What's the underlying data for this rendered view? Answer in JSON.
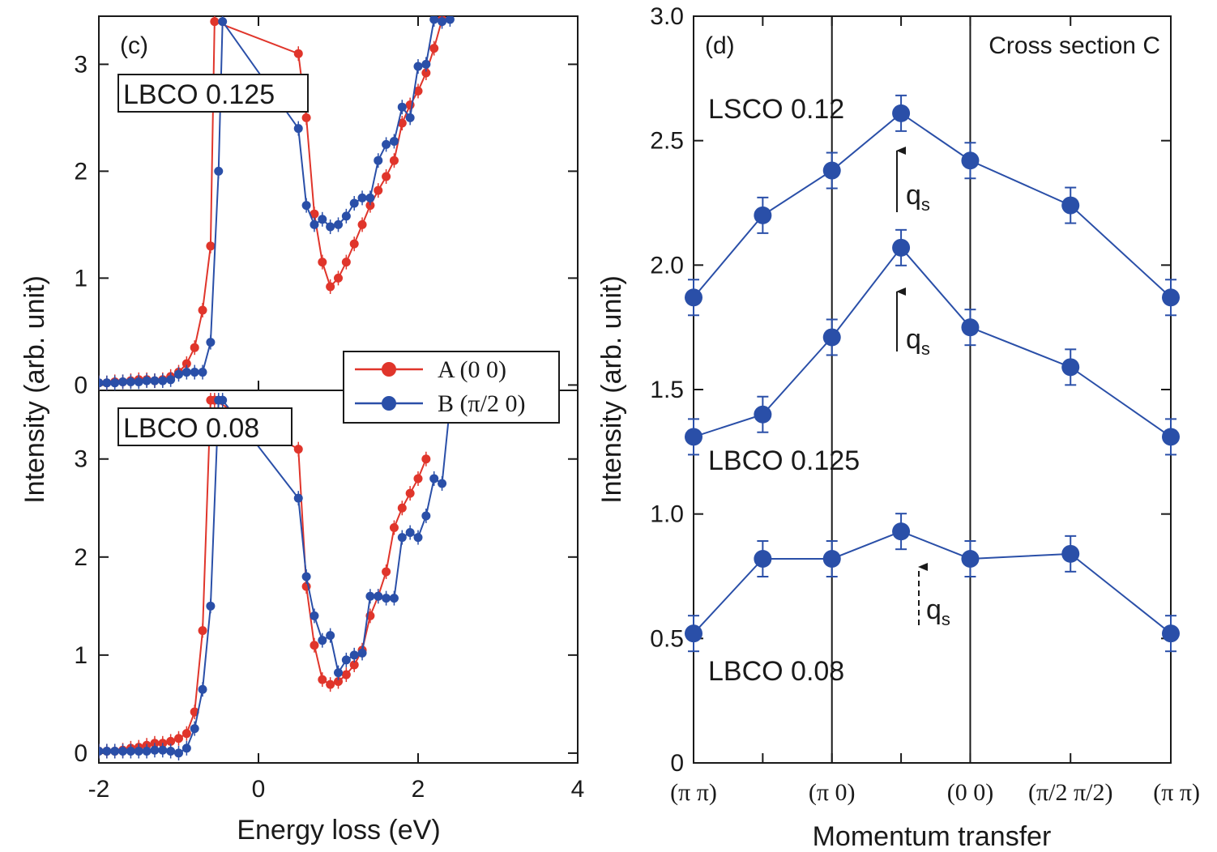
{
  "chart_data": [
    {
      "type": "line",
      "panel_label": "(c)",
      "subplots": [
        {
          "sample_label": "LBCO 0.125",
          "ylim": [
            -0.05,
            3.45
          ],
          "yticks": [
            "0",
            "1",
            "2",
            "3"
          ],
          "series": [
            {
              "name": "A (0 0)",
              "color": "#e0352b",
              "x": [
                -2.0,
                -1.9,
                -1.8,
                -1.7,
                -1.6,
                -1.5,
                -1.4,
                -1.3,
                -1.2,
                -1.1,
                -1.0,
                -0.9,
                -0.8,
                -0.7,
                -0.6,
                -0.55,
                0.5,
                0.6,
                0.7,
                0.8,
                0.9,
                1.0,
                1.1,
                1.2,
                1.3,
                1.4,
                1.5,
                1.6,
                1.7,
                1.8,
                1.9,
                2.0,
                2.1,
                2.2,
                2.3
              ],
              "y": [
                0.02,
                0.02,
                0.03,
                0.03,
                0.04,
                0.05,
                0.05,
                0.04,
                0.05,
                0.08,
                0.12,
                0.2,
                0.35,
                0.7,
                1.3,
                3.4,
                3.1,
                2.5,
                1.6,
                1.15,
                0.92,
                1.0,
                1.15,
                1.32,
                1.5,
                1.68,
                1.82,
                1.95,
                2.1,
                2.45,
                2.62,
                2.75,
                2.92,
                3.15,
                3.42
              ]
            },
            {
              "name": "B (π/2 0)",
              "color": "#2a4fa8",
              "x": [
                -2.0,
                -1.9,
                -1.8,
                -1.7,
                -1.6,
                -1.5,
                -1.4,
                -1.3,
                -1.2,
                -1.1,
                -1.0,
                -0.9,
                -0.8,
                -0.7,
                -0.6,
                -0.5,
                -0.45,
                0.5,
                0.6,
                0.7,
                0.8,
                0.9,
                1.0,
                1.1,
                1.2,
                1.3,
                1.4,
                1.5,
                1.6,
                1.7,
                1.8,
                1.9,
                2.0,
                2.1,
                2.2,
                2.3,
                2.4
              ],
              "y": [
                0.02,
                0.02,
                0.02,
                0.03,
                0.03,
                0.03,
                0.04,
                0.04,
                0.04,
                0.05,
                0.1,
                0.12,
                0.12,
                0.12,
                0.4,
                2.0,
                3.4,
                2.4,
                1.68,
                1.5,
                1.55,
                1.48,
                1.5,
                1.58,
                1.7,
                1.75,
                1.75,
                2.1,
                2.25,
                2.28,
                2.6,
                2.5,
                2.98,
                3.0,
                3.42,
                3.4,
                3.42
              ]
            }
          ]
        },
        {
          "sample_label": "LBCO 0.08",
          "ylim": [
            -0.1,
            3.7
          ],
          "yticks": [
            "0",
            "1",
            "2",
            "3"
          ],
          "series": [
            {
              "name": "A (0 0)",
              "color": "#e0352b",
              "x": [
                -2.0,
                -1.9,
                -1.8,
                -1.7,
                -1.6,
                -1.5,
                -1.4,
                -1.3,
                -1.2,
                -1.1,
                -1.0,
                -0.9,
                -0.8,
                -0.7,
                -0.6,
                -0.55,
                0.5,
                0.6,
                0.7,
                0.8,
                0.9,
                1.0,
                1.1,
                1.2,
                1.3,
                1.4,
                1.5,
                1.6,
                1.7,
                1.8,
                1.9,
                2.0,
                2.1
              ],
              "y": [
                0.02,
                0.02,
                0.02,
                0.03,
                0.05,
                0.06,
                0.08,
                0.1,
                0.1,
                0.12,
                0.15,
                0.2,
                0.42,
                1.25,
                3.6,
                3.6,
                3.1,
                1.7,
                1.1,
                0.75,
                0.7,
                0.73,
                0.8,
                0.9,
                1.05,
                1.4,
                1.6,
                1.85,
                2.3,
                2.5,
                2.65,
                2.8,
                3.0
              ]
            },
            {
              "name": "B (π/2 0)",
              "color": "#2a4fa8",
              "x": [
                -2.0,
                -1.9,
                -1.8,
                -1.7,
                -1.6,
                -1.5,
                -1.4,
                -1.3,
                -1.2,
                -1.1,
                -1.0,
                -0.9,
                -0.8,
                -0.7,
                -0.6,
                -0.5,
                -0.45,
                0.5,
                0.6,
                0.7,
                0.8,
                0.9,
                1.0,
                1.1,
                1.2,
                1.3,
                1.4,
                1.5,
                1.6,
                1.7,
                1.8,
                1.9,
                2.0,
                2.1,
                2.2,
                2.3,
                2.4
              ],
              "y": [
                0.02,
                0.02,
                0.02,
                0.02,
                0.02,
                0.02,
                0.02,
                0.03,
                0.03,
                0.02,
                0.0,
                0.05,
                0.25,
                0.65,
                1.5,
                3.6,
                3.6,
                2.6,
                1.8,
                1.4,
                1.15,
                1.2,
                0.82,
                0.95,
                1.0,
                1.02,
                1.6,
                1.6,
                1.58,
                1.58,
                2.2,
                2.25,
                2.2,
                2.42,
                2.8,
                2.75,
                3.55
              ]
            }
          ]
        }
      ],
      "xlim": [
        -2,
        4
      ],
      "xticks": [
        "-2",
        "0",
        "2",
        "4"
      ],
      "xlabel": "Energy loss (eV)",
      "ylabel": "Intensity (arb. unit)",
      "legend": {
        "placement": "right, between subplots",
        "entries": [
          "A (0 0)",
          "B (π/2 0)"
        ]
      },
      "grid": false
    },
    {
      "type": "line",
      "panel_label": "(d)",
      "title": "Cross section C",
      "categories": [
        "(π π)",
        "",
        "(π 0)",
        "",
        "(0 0)",
        "(π/2 π/2)",
        "(π π)"
      ],
      "x": [
        0,
        1,
        2,
        3,
        4,
        5.45,
        6.9
      ],
      "vlines": [
        2,
        4
      ],
      "xlabel": "Momentum transfer",
      "ylabel": "Intensity (arb. unit)",
      "ylim": [
        0,
        3.0
      ],
      "yticks": [
        "0",
        "0.5",
        "1.0",
        "1.5",
        "2.0",
        "2.5",
        "3.0"
      ],
      "color": "#2a4fa8",
      "series": [
        {
          "name": "LSCO 0.12",
          "values": [
            1.87,
            2.2,
            2.38,
            2.61,
            2.42,
            2.24,
            1.87
          ]
        },
        {
          "name": "LBCO 0.125",
          "values": [
            1.31,
            1.4,
            1.71,
            2.07,
            1.75,
            1.59,
            1.31
          ]
        },
        {
          "name": "LBCO 0.08",
          "values": [
            0.52,
            0.82,
            0.82,
            0.93,
            0.82,
            0.84,
            0.52
          ]
        }
      ],
      "annotations": [
        {
          "text": "q",
          "sub": "s",
          "series": "LSCO 0.12",
          "arrow": "solid"
        },
        {
          "text": "q",
          "sub": "s",
          "series": "LBCO 0.125",
          "arrow": "solid"
        },
        {
          "text": "q",
          "sub": "s",
          "series": "LBCO 0.08",
          "arrow": "dashed"
        }
      ],
      "grid": false
    }
  ]
}
